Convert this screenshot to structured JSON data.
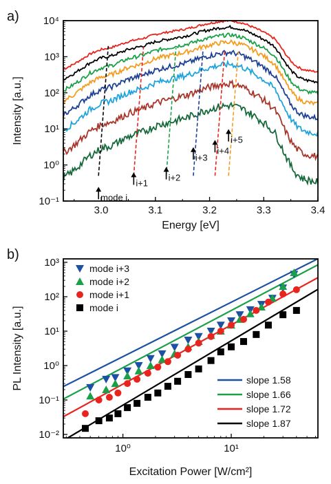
{
  "chart_data": [
    {
      "type": "line",
      "panel_label": "a)",
      "xlabel": "Energy [eV]",
      "ylabel": "Intensity [a.u.]",
      "xlim": [
        2.93,
        3.4
      ],
      "ylim_log10": [
        -1,
        4
      ],
      "y_scale": "log",
      "x_ticks": [
        "3.0",
        "3.1",
        "3.2",
        "3.3",
        "3.4"
      ],
      "x_tick_values": [
        3.0,
        3.1,
        3.2,
        3.3,
        3.4
      ],
      "y_ticks": [
        "10⁻¹",
        "10⁰",
        "10¹",
        "10²",
        "10³",
        "10⁴"
      ],
      "y_tick_exponents": [
        -1,
        0,
        1,
        2,
        3,
        4
      ],
      "spectrum_shape": {
        "x": [
          2.93,
          2.95,
          2.98,
          3.0,
          3.02,
          3.05,
          3.08,
          3.1,
          3.13,
          3.16,
          3.19,
          3.22,
          3.24,
          3.26,
          3.28,
          3.3,
          3.32,
          3.33,
          3.34,
          3.35,
          3.36,
          3.37,
          3.38,
          3.39,
          3.4
        ],
        "log_offset": [
          -0.75,
          -0.6,
          -0.32,
          -0.2,
          -0.14,
          0.02,
          0.12,
          0.22,
          0.3,
          0.38,
          0.5,
          0.58,
          0.6,
          0.54,
          0.42,
          0.28,
          0.1,
          -0.1,
          -0.32,
          -0.52,
          -0.66,
          -0.74,
          -0.78,
          -0.8,
          -0.82
        ]
      },
      "series": [
        {
          "color": "#e8241e",
          "peak_log10": 4.0
        },
        {
          "color": "#000000",
          "peak_log10": 3.78
        },
        {
          "color": "#1aa049",
          "peak_log10": 3.52
        },
        {
          "color": "#f39c1f",
          "peak_log10": 3.28
        },
        {
          "color": "#1d3f94",
          "peak_log10": 2.95
        },
        {
          "color": "#1fa3dd",
          "peak_log10": 2.58
        },
        {
          "color": "#a8352a",
          "peak_log10": 2.0
        },
        {
          "color": "#15683a",
          "peak_log10": 1.35
        }
      ],
      "mode_dashed_colors": [
        "#000000",
        "#e8241e",
        "#1aa049",
        "#1d3f94",
        "#e8241e",
        "#f39c1f"
      ],
      "mode_positions_eV": [
        2.995,
        3.06,
        3.12,
        3.17,
        3.21,
        3.235
      ],
      "mode_labels": [
        "mode i",
        "i+1",
        "i+2",
        "i+3",
        "i+4",
        "i+5"
      ]
    },
    {
      "type": "scatter",
      "panel_label": "b)",
      "xlabel": "Excitation Power [W/cm²]",
      "ylabel": "PL Intensity [a.u.]",
      "x_scale": "log",
      "y_scale": "log",
      "xlim_log10": [
        -0.55,
        1.8
      ],
      "ylim_log10": [
        -2.1,
        3.1
      ],
      "x_ticks": [
        "10⁰",
        "10¹"
      ],
      "x_tick_exponents": [
        0,
        1
      ],
      "y_ticks": [
        "10⁻²",
        "10⁻¹",
        "10⁰",
        "10¹",
        "10²",
        "10³"
      ],
      "y_tick_exponents": [
        -2,
        -1,
        0,
        1,
        2,
        3
      ],
      "legend_position": "top-left",
      "slope_legend_position": "bottom-right",
      "series": [
        {
          "name": "mode i+3",
          "color": "#1d4fa3",
          "marker": "triangle-down",
          "slope": 1.58,
          "slope_label": "slope 1.58",
          "x": [
            0.5,
            0.7,
            0.85,
            1.1,
            1.4,
            1.8,
            2.3,
            3,
            4,
            5,
            6.5,
            8,
            10,
            12,
            15,
            19,
            24,
            30,
            38
          ],
          "y": [
            0.23,
            0.4,
            0.45,
            0.7,
            1.0,
            1.6,
            2.2,
            3.4,
            5.5,
            7,
            10,
            15,
            20,
            30,
            42,
            60,
            90,
            180,
            450
          ]
        },
        {
          "name": "mode i+2",
          "color": "#1aa049",
          "marker": "triangle-up",
          "slope": 1.66,
          "slope_label": "slope 1.66",
          "x": [
            0.5,
            0.7,
            0.85,
            1.1,
            1.4,
            1.8,
            2.3,
            3,
            4,
            5,
            6.5,
            8,
            10,
            12,
            15,
            19,
            24,
            30,
            38
          ],
          "y": [
            0.13,
            0.2,
            0.3,
            0.5,
            0.7,
            1.0,
            1.5,
            2.2,
            3.5,
            5,
            7.5,
            10,
            15,
            22,
            32,
            50,
            90,
            200,
            500
          ]
        },
        {
          "name": "mode i+1",
          "color": "#e8241e",
          "marker": "circle",
          "slope": 1.72,
          "slope_label": "slope 1.72",
          "x": [
            0.45,
            0.6,
            0.75,
            0.9,
            1.1,
            1.35,
            1.7,
            2.1,
            2.6,
            3.2,
            4,
            5,
            6.5,
            8,
            10,
            13,
            17,
            22,
            30,
            40
          ],
          "y": [
            0.04,
            0.1,
            0.12,
            0.16,
            0.3,
            0.4,
            0.6,
            0.9,
            1.3,
            2,
            3,
            4.5,
            7,
            10,
            15,
            22,
            40,
            70,
            120,
            160
          ]
        },
        {
          "name": "mode i",
          "color": "#000000",
          "marker": "square",
          "slope": 1.87,
          "slope_label": "slope 1.87",
          "x": [
            0.45,
            0.6,
            0.75,
            0.9,
            1.1,
            1.35,
            1.7,
            2.1,
            2.6,
            3.2,
            4,
            5,
            6.5,
            8,
            10,
            13,
            17,
            22,
            30,
            40
          ],
          "y": [
            0.015,
            0.025,
            0.03,
            0.04,
            0.06,
            0.08,
            0.12,
            0.16,
            0.25,
            0.35,
            0.55,
            0.8,
            1.4,
            2.5,
            3.5,
            5,
            8,
            15,
            30,
            40
          ]
        }
      ],
      "fit_lines": [
        {
          "color": "#1d4fa3",
          "slope": 1.58,
          "log10_y_at_log10_x_0": 0.26
        },
        {
          "color": "#1aa049",
          "slope": 1.66,
          "log10_y_at_log10_x_0": -0.06
        },
        {
          "color": "#e8241e",
          "slope": 1.72,
          "log10_y_at_log10_x_0": -0.54
        },
        {
          "color": "#000000",
          "slope": 1.87,
          "log10_y_at_log10_x_0": -1.15
        }
      ]
    }
  ]
}
